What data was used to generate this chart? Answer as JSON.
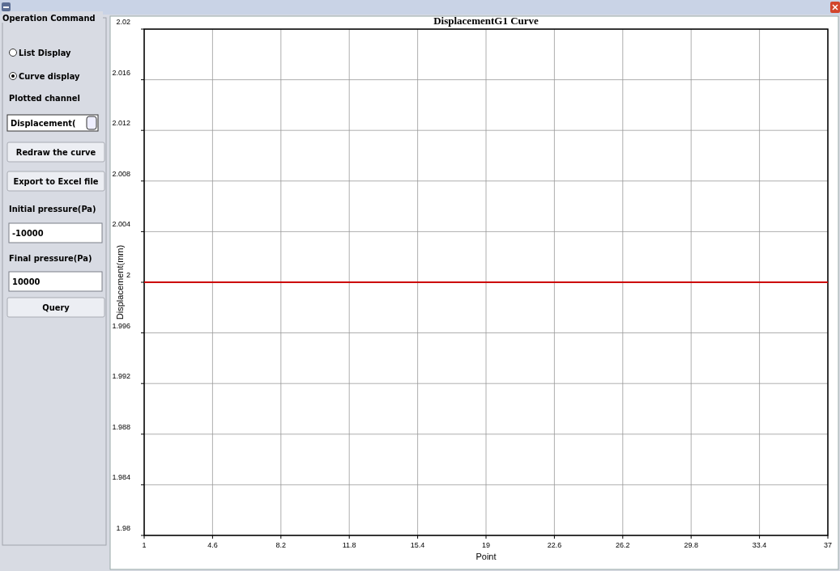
{
  "chart_data": {
    "type": "line",
    "title": "DisplacementG1 Curve",
    "xlabel": "Point",
    "ylabel": "Displacement(mm)",
    "x": [
      1,
      37
    ],
    "series": [
      {
        "color": "#cc0000",
        "values": [
          2,
          2
        ]
      }
    ],
    "xlim": [
      1,
      37
    ],
    "xticks": [
      1,
      4.6,
      8.2,
      11.8,
      15.4,
      19,
      22.6,
      26.2,
      29.8,
      33.4,
      37
    ],
    "ylim": [
      1.98,
      2.02
    ],
    "yticks": [
      1.98,
      1.984,
      1.988,
      1.992,
      1.996,
      2,
      2.004,
      2.008,
      2.012,
      2.016,
      2.02
    ],
    "grid": true,
    "marker": "none",
    "line_style": "solid",
    "annotations": [
      "Operation Command",
      "List Display",
      "Curve display",
      "Plotted channel",
      "Displacement(",
      "Redraw the curve",
      "Export to Excel file",
      "Initial pressure(Pa)",
      "-10000",
      "Final pressure(Pa)",
      "10000",
      "Query"
    ]
  }
}
